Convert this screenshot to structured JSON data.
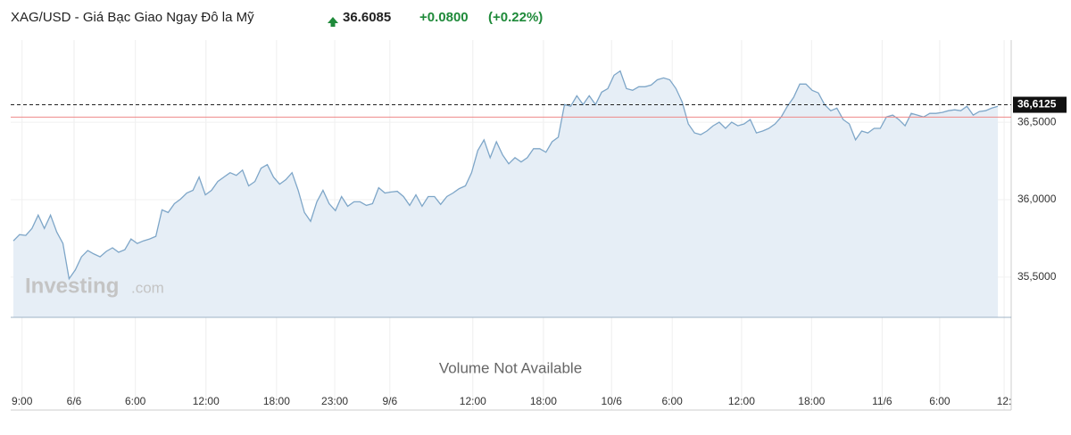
{
  "chart_data": {
    "type": "area",
    "title": "XAG/USD - Giá Bạc Giao Ngay Đô la Mỹ",
    "last_price": "36.6085",
    "change": "+0.0800",
    "change_percent": "(+0.22%)",
    "watermark": [
      "Investing",
      ".com"
    ],
    "volume_note": "Volume Not Available",
    "current_price": {
      "value": 36.6125,
      "label": "36,6125"
    },
    "reference_line": 36.5325,
    "ylim": [
      35.24,
      37.03
    ],
    "yticks": [
      {
        "value": 35.5,
        "label": "35,5000"
      },
      {
        "value": 36.0,
        "label": "36,0000"
      },
      {
        "value": 36.5,
        "label": "36,5000"
      }
    ],
    "xlim": [
      0,
      161
    ],
    "xticks": [
      {
        "value": 1.4,
        "label": "9:00"
      },
      {
        "value": 9.8,
        "label": "6/6"
      },
      {
        "value": 19.7,
        "label": "6:00"
      },
      {
        "value": 31.1,
        "label": "12:00"
      },
      {
        "value": 42.5,
        "label": "18:00"
      },
      {
        "value": 51.9,
        "label": "23:00"
      },
      {
        "value": 60.8,
        "label": "9/6"
      },
      {
        "value": 74.2,
        "label": "12:00"
      },
      {
        "value": 85.6,
        "label": "18:00"
      },
      {
        "value": 96.6,
        "label": "10/6"
      },
      {
        "value": 106.4,
        "label": "6:00"
      },
      {
        "value": 117.6,
        "label": "12:00"
      },
      {
        "value": 128.9,
        "label": "18:00"
      },
      {
        "value": 140.3,
        "label": "11/6"
      },
      {
        "value": 149.6,
        "label": "6:00"
      },
      {
        "value": 160.0,
        "label": "12:"
      }
    ],
    "grid": true,
    "series": [
      {
        "color": "#7ea6c8",
        "fill": "#e6eef6",
        "values": [
          35.734,
          35.774,
          35.769,
          35.814,
          35.9,
          35.814,
          35.9,
          35.791,
          35.717,
          35.489,
          35.546,
          35.631,
          35.671,
          35.649,
          35.631,
          35.666,
          35.689,
          35.66,
          35.677,
          35.746,
          35.717,
          35.734,
          35.746,
          35.763,
          35.934,
          35.917,
          35.974,
          36.003,
          36.043,
          36.06,
          36.146,
          36.031,
          36.06,
          36.117,
          36.146,
          36.174,
          36.157,
          36.191,
          36.089,
          36.117,
          36.203,
          36.226,
          36.146,
          36.1,
          36.129,
          36.174,
          36.06,
          35.917,
          35.86,
          35.986,
          36.06,
          35.974,
          35.929,
          36.02,
          35.957,
          35.986,
          35.986,
          35.963,
          35.974,
          36.077,
          36.043,
          36.049,
          36.054,
          36.02,
          35.963,
          36.031,
          35.957,
          36.02,
          36.02,
          35.969,
          36.02,
          36.043,
          36.071,
          36.089,
          36.174,
          36.317,
          36.386,
          36.271,
          36.374,
          36.289,
          36.231,
          36.271,
          36.243,
          36.271,
          36.329,
          36.329,
          36.306,
          36.374,
          36.403,
          36.614,
          36.603,
          36.671,
          36.614,
          36.671,
          36.614,
          36.694,
          36.717,
          36.803,
          36.831,
          36.717,
          36.706,
          36.729,
          36.729,
          36.74,
          36.774,
          36.786,
          36.774,
          36.717,
          36.631,
          36.489,
          36.431,
          36.42,
          36.443,
          36.477,
          36.5,
          36.46,
          36.5,
          36.477,
          36.489,
          36.517,
          36.431,
          36.443,
          36.46,
          36.489,
          36.534,
          36.603,
          36.66,
          36.746,
          36.746,
          36.706,
          36.689,
          36.614,
          36.574,
          36.591,
          36.517,
          36.489,
          36.386,
          36.443,
          36.431,
          36.46,
          36.46,
          36.534,
          36.546,
          36.517,
          36.477,
          36.557,
          36.546,
          36.534,
          36.557,
          36.557,
          36.563,
          36.574,
          36.58,
          36.574,
          36.603,
          36.546,
          36.569,
          36.574,
          36.591,
          36.603
        ]
      }
    ]
  }
}
